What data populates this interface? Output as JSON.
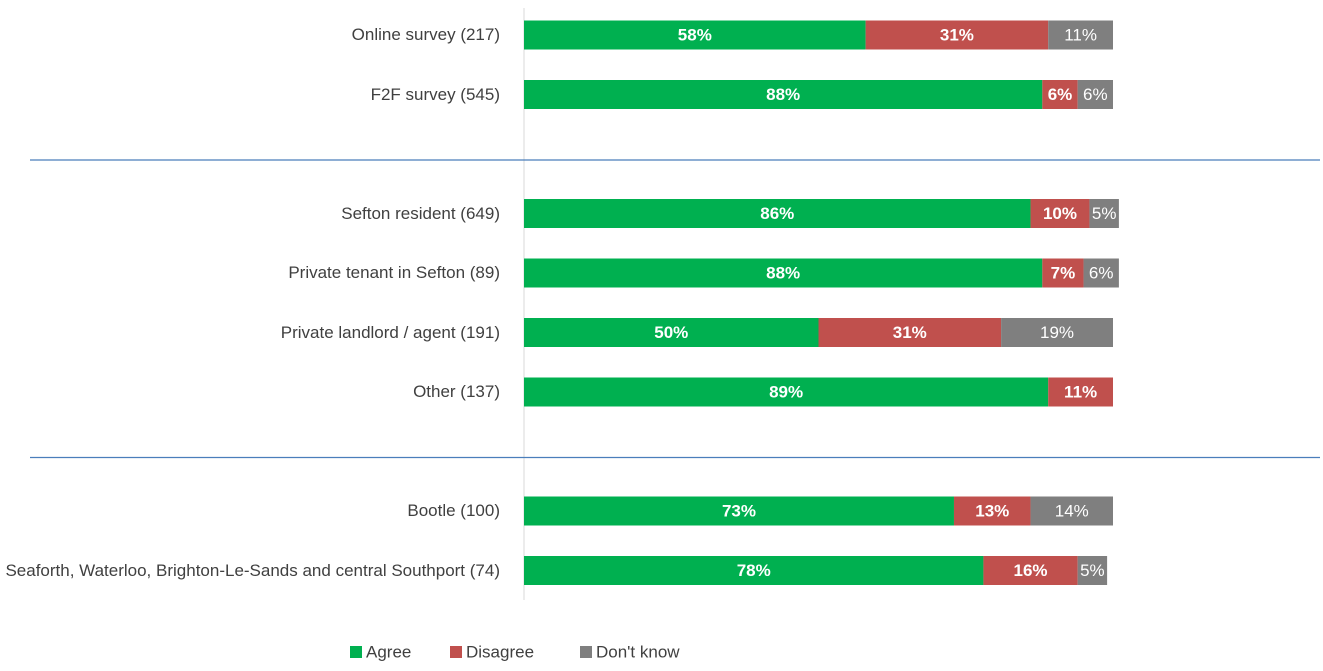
{
  "chart_data": {
    "type": "stacked-bar-horizontal",
    "categories": [
      "Online survey (217)",
      "F2F survey (545)",
      null,
      "Sefton resident (649)",
      "Private tenant in Sefton (89)",
      "Private landlord / agent (191)",
      "Other (137)",
      null,
      "Bootle (100)",
      "Seaforth, Waterloo, Brighton-Le-Sands and central Southport (74)"
    ],
    "series": [
      {
        "name": "Agree",
        "color": "#00b050",
        "values": [
          58,
          88,
          null,
          86,
          88,
          50,
          89,
          null,
          73,
          78
        ],
        "value_labels": [
          "58%",
          "88%",
          null,
          "86%",
          "88%",
          "50%",
          "89%",
          null,
          "73%",
          "78%"
        ]
      },
      {
        "name": "Disagree",
        "color": "#c0504d",
        "values": [
          31,
          6,
          null,
          10,
          7,
          31,
          11,
          null,
          13,
          16
        ],
        "value_labels": [
          "31%",
          "6%",
          null,
          "10%",
          "7%",
          "31%",
          "11%",
          null,
          "13%",
          "16%"
        ]
      },
      {
        "name": "Don't know",
        "color": "#7f7f7f",
        "values": [
          11,
          6,
          null,
          5,
          6,
          19,
          null,
          null,
          14,
          5
        ],
        "value_labels": [
          "11%",
          "6%",
          null,
          "5%",
          "6%",
          "19%",
          null,
          null,
          "14%",
          "5%"
        ]
      }
    ],
    "xlim": [
      0,
      100
    ],
    "legend": "bottom"
  }
}
